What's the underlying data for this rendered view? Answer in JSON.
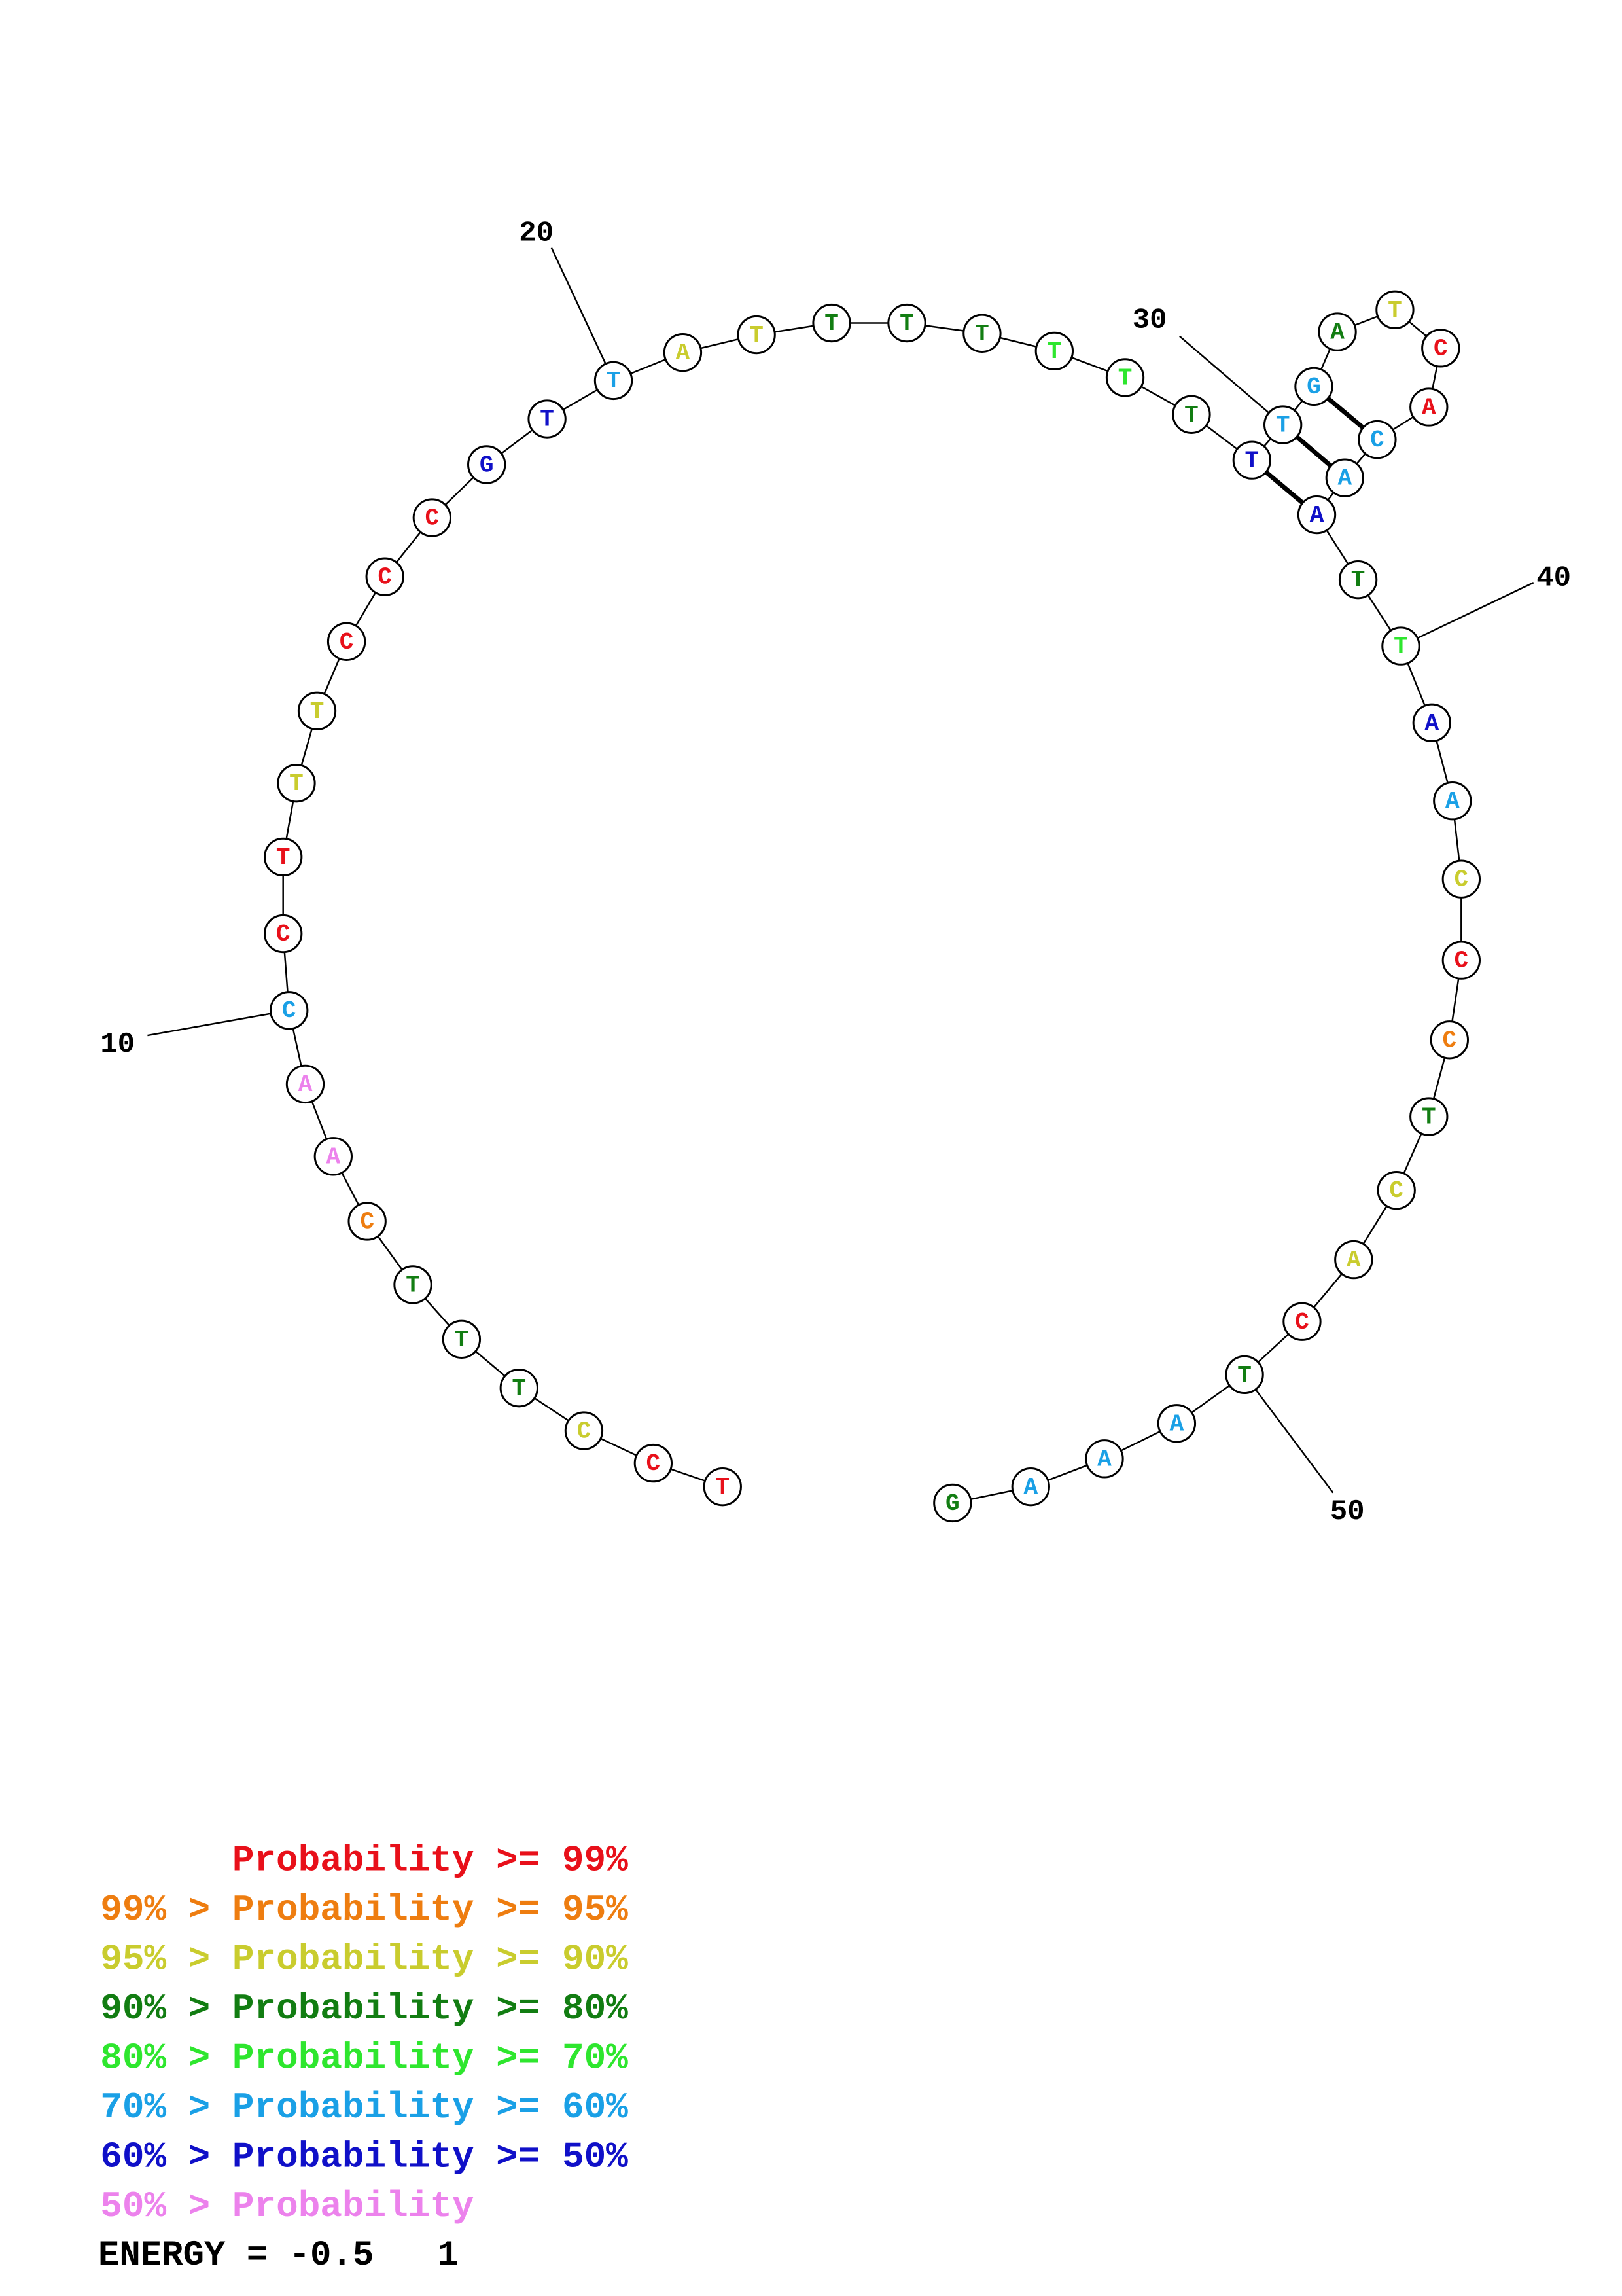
{
  "colors": {
    "p99": "#e8101a",
    "p95": "#ee7d10",
    "p90": "#c9cc2e",
    "p80": "#127d12",
    "p70": "#2ee62e",
    "p60": "#1aa0e6",
    "p50": "#1010c8",
    "plt50": "#ec82ec"
  },
  "nucleotides": [
    {
      "n": 1,
      "base": "T",
      "prob": "p99"
    },
    {
      "n": 2,
      "base": "C",
      "prob": "p99"
    },
    {
      "n": 3,
      "base": "C",
      "prob": "p90"
    },
    {
      "n": 4,
      "base": "T",
      "prob": "p80"
    },
    {
      "n": 5,
      "base": "T",
      "prob": "p80"
    },
    {
      "n": 6,
      "base": "T",
      "prob": "p80"
    },
    {
      "n": 7,
      "base": "C",
      "prob": "p95"
    },
    {
      "n": 8,
      "base": "A",
      "prob": "plt50"
    },
    {
      "n": 9,
      "base": "A",
      "prob": "plt50"
    },
    {
      "n": 10,
      "base": "C",
      "prob": "p60"
    },
    {
      "n": 11,
      "base": "C",
      "prob": "p99"
    },
    {
      "n": 12,
      "base": "T",
      "prob": "p99"
    },
    {
      "n": 13,
      "base": "T",
      "prob": "p90"
    },
    {
      "n": 14,
      "base": "T",
      "prob": "p90"
    },
    {
      "n": 15,
      "base": "C",
      "prob": "p99"
    },
    {
      "n": 16,
      "base": "C",
      "prob": "p99"
    },
    {
      "n": 17,
      "base": "C",
      "prob": "p99"
    },
    {
      "n": 18,
      "base": "G",
      "prob": "p50"
    },
    {
      "n": 19,
      "base": "T",
      "prob": "p50"
    },
    {
      "n": 20,
      "base": "T",
      "prob": "p60"
    },
    {
      "n": 21,
      "base": "A",
      "prob": "p90"
    },
    {
      "n": 22,
      "base": "T",
      "prob": "p90"
    },
    {
      "n": 23,
      "base": "T",
      "prob": "p80"
    },
    {
      "n": 24,
      "base": "T",
      "prob": "p80"
    },
    {
      "n": 25,
      "base": "T",
      "prob": "p80"
    },
    {
      "n": 26,
      "base": "T",
      "prob": "p70"
    },
    {
      "n": 27,
      "base": "T",
      "prob": "p70"
    },
    {
      "n": 28,
      "base": "T",
      "prob": "p80"
    },
    {
      "n": 29,
      "base": "T",
      "prob": "p50"
    },
    {
      "n": 30,
      "base": "T",
      "prob": "p60"
    },
    {
      "n": 31,
      "base": "G",
      "prob": "p60"
    },
    {
      "n": 32,
      "base": "A",
      "prob": "p80"
    },
    {
      "n": 33,
      "base": "T",
      "prob": "p90"
    },
    {
      "n": 34,
      "base": "C",
      "prob": "p99"
    },
    {
      "n": 35,
      "base": "A",
      "prob": "p99"
    },
    {
      "n": 36,
      "base": "C",
      "prob": "p60"
    },
    {
      "n": 37,
      "base": "A",
      "prob": "p60"
    },
    {
      "n": 38,
      "base": "A",
      "prob": "p50"
    },
    {
      "n": 39,
      "base": "T",
      "prob": "p80"
    },
    {
      "n": 40,
      "base": "T",
      "prob": "p70"
    },
    {
      "n": 41,
      "base": "A",
      "prob": "p50"
    },
    {
      "n": 42,
      "base": "A",
      "prob": "p60"
    },
    {
      "n": 43,
      "base": "C",
      "prob": "p90"
    },
    {
      "n": 44,
      "base": "C",
      "prob": "p99"
    },
    {
      "n": 45,
      "base": "C",
      "prob": "p95"
    },
    {
      "n": 46,
      "base": "T",
      "prob": "p80"
    },
    {
      "n": 47,
      "base": "C",
      "prob": "p90"
    },
    {
      "n": 48,
      "base": "A",
      "prob": "p90"
    },
    {
      "n": 49,
      "base": "C",
      "prob": "p99"
    },
    {
      "n": 50,
      "base": "T",
      "prob": "p80"
    },
    {
      "n": 51,
      "base": "A",
      "prob": "p60"
    },
    {
      "n": 52,
      "base": "A",
      "prob": "p60"
    },
    {
      "n": 53,
      "base": "A",
      "prob": "p60"
    },
    {
      "n": 54,
      "base": "G",
      "prob": "p80"
    }
  ],
  "pairs": [
    [
      29,
      38
    ],
    [
      30,
      37
    ],
    [
      31,
      36
    ]
  ],
  "position_labels": [
    "10",
    "20",
    "30",
    "40",
    "50"
  ],
  "legend": [
    {
      "prefix": "",
      "text": "Probability >= 99%",
      "prob": "p99"
    },
    {
      "prefix": "99% > ",
      "text": "Probability >= 95%",
      "prob": "p95"
    },
    {
      "prefix": "95% > ",
      "text": "Probability >= 90%",
      "prob": "p90"
    },
    {
      "prefix": "90% > ",
      "text": "Probability >= 80%",
      "prob": "p80"
    },
    {
      "prefix": "80% > ",
      "text": "Probability >= 70%",
      "prob": "p70"
    },
    {
      "prefix": "70% > ",
      "text": "Probability >= 60%",
      "prob": "p60"
    },
    {
      "prefix": "60% > ",
      "text": "Probability >= 50%",
      "prob": "p50"
    },
    {
      "prefix": "50% > ",
      "text": "Probability",
      "prob": "plt50"
    }
  ],
  "energy": "ENERGY = -0.5   1"
}
